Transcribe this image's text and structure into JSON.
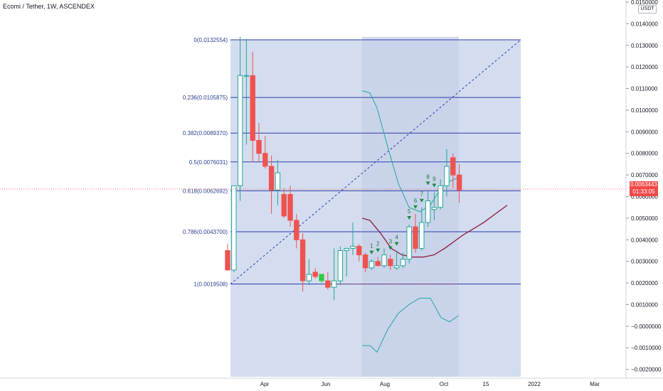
{
  "header": {
    "title": "Ecomi / Tether, 1W, ASCENDEX"
  },
  "price_axis": {
    "unit": "USDT"
  },
  "last_price": {
    "value": "0.0063443",
    "countdown": "01:33:05"
  },
  "colors": {
    "up": "#26a69a",
    "down": "#ef5350",
    "up_green": "#2ecc40",
    "fib": "#2f3cb0",
    "background_zone": "#d3ddef",
    "bollinger": "#26a69a",
    "moving_average": "#8d1b3d",
    "td": "#1e8a3e"
  },
  "chart_data": {
    "type": "candlestick",
    "title": "Ecomi / Tether, 1W, ASCENDEX",
    "y_ticks": [
      "0.0150000",
      "0.0140000",
      "0.0130000",
      "0.0120000",
      "0.0110000",
      "0.0100000",
      "0.0090000",
      "0.0080000",
      "0.0070000",
      "0.0060000",
      "0.0050000",
      "0.0040000",
      "0.0030000",
      "0.0020000",
      "0.0010000",
      "−0.0000000",
      "−0.0010000",
      "−0.0020000"
    ],
    "x_ticks": [
      "Apr",
      "Jun",
      "Aug",
      "Oct",
      "15",
      "2022",
      "Mar"
    ],
    "ylim": [
      -0.0025,
      0.0151
    ],
    "fib_levels": [
      {
        "label": "0(0.0132554)",
        "value": 0.0132554
      },
      {
        "label": "0.236(0.0105875)",
        "value": 0.0105875
      },
      {
        "label": "0.382(0.0089370)",
        "value": 0.008937
      },
      {
        "label": "0.5(0.0076031)",
        "value": 0.0076031
      },
      {
        "label": "0.618(0.0062692)",
        "value": 0.0062692
      },
      {
        "label": "0.786(0.0043700)",
        "value": 0.00437
      },
      {
        "label": "1(0.0019508)",
        "value": 0.0019508
      }
    ],
    "candles": [
      {
        "o": 0.0035,
        "h": 0.0038,
        "l": 0.0026,
        "c": 0.0026
      },
      {
        "o": 0.0026,
        "h": 0.0065,
        "l": 0.0025,
        "c": 0.0065
      },
      {
        "o": 0.0065,
        "h": 0.0134,
        "l": 0.0058,
        "c": 0.0116
      },
      {
        "o": 0.0116,
        "h": 0.0133,
        "l": 0.0084,
        "c": 0.0116
      },
      {
        "o": 0.0116,
        "h": 0.0127,
        "l": 0.0076,
        "c": 0.0086
      },
      {
        "o": 0.0086,
        "h": 0.0094,
        "l": 0.0076,
        "c": 0.008
      },
      {
        "o": 0.008,
        "h": 0.0088,
        "l": 0.0073,
        "c": 0.0074
      },
      {
        "o": 0.0074,
        "h": 0.0079,
        "l": 0.0052,
        "c": 0.0063
      },
      {
        "o": 0.0063,
        "h": 0.0077,
        "l": 0.0056,
        "c": 0.0071
      },
      {
        "o": 0.0061,
        "h": 0.0064,
        "l": 0.005,
        "c": 0.0051
      },
      {
        "o": 0.0061,
        "h": 0.0065,
        "l": 0.0046,
        "c": 0.0049
      },
      {
        "o": 0.0049,
        "h": 0.0052,
        "l": 0.0036,
        "c": 0.004
      },
      {
        "o": 0.004,
        "h": 0.0043,
        "l": 0.0016,
        "c": 0.0021
      },
      {
        "o": 0.0021,
        "h": 0.0031,
        "l": 0.0019,
        "c": 0.0024
      },
      {
        "o": 0.0025,
        "h": 0.0027,
        "l": 0.0022,
        "c": 0.0023
      },
      {
        "o": 0.0021,
        "h": 0.0024,
        "l": 0.002,
        "c": 0.0024
      },
      {
        "o": 0.0021,
        "h": 0.0025,
        "l": 0.0017,
        "c": 0.0018
      },
      {
        "o": 0.0018,
        "h": 0.0036,
        "l": 0.0012,
        "c": 0.0021
      },
      {
        "o": 0.0021,
        "h": 0.0037,
        "l": 0.0019,
        "c": 0.0035
      },
      {
        "o": 0.0035,
        "h": 0.0036,
        "l": 0.0023,
        "c": 0.0036
      },
      {
        "o": 0.0036,
        "h": 0.0048,
        "l": 0.0033,
        "c": 0.0037
      },
      {
        "o": 0.0037,
        "h": 0.0038,
        "l": 0.003,
        "c": 0.0033
      },
      {
        "o": 0.0033,
        "h": 0.0034,
        "l": 0.0025,
        "c": 0.0027
      },
      {
        "o": 0.0027,
        "h": 0.0031,
        "l": 0.0026,
        "c": 0.003
      },
      {
        "o": 0.003,
        "h": 0.0032,
        "l": 0.0028,
        "c": 0.0028
      },
      {
        "o": 0.0028,
        "h": 0.0036,
        "l": 0.0027,
        "c": 0.0033
      },
      {
        "o": 0.0031,
        "h": 0.0033,
        "l": 0.0026,
        "c": 0.0028
      },
      {
        "o": 0.0027,
        "h": 0.0035,
        "l": 0.0026,
        "c": 0.0028
      },
      {
        "o": 0.0028,
        "h": 0.0034,
        "l": 0.0027,
        "c": 0.0031
      },
      {
        "o": 0.0031,
        "h": 0.0047,
        "l": 0.0029,
        "c": 0.0046
      },
      {
        "o": 0.0046,
        "h": 0.0052,
        "l": 0.0034,
        "c": 0.0036
      },
      {
        "o": 0.0036,
        "h": 0.0055,
        "l": 0.0035,
        "c": 0.0048
      },
      {
        "o": 0.0048,
        "h": 0.0063,
        "l": 0.0046,
        "c": 0.0058
      },
      {
        "o": 0.0054,
        "h": 0.0062,
        "l": 0.0049,
        "c": 0.0055
      },
      {
        "o": 0.0055,
        "h": 0.0068,
        "l": 0.0054,
        "c": 0.0065
      },
      {
        "o": 0.0065,
        "h": 0.0082,
        "l": 0.006,
        "c": 0.0074
      },
      {
        "o": 0.0078,
        "h": 0.008,
        "l": 0.0064,
        "c": 0.007
      },
      {
        "o": 0.007,
        "h": 0.0075,
        "l": 0.0057,
        "c": 0.0063
      }
    ],
    "td_sequential": [
      {
        "label": "1",
        "candle": 23
      },
      {
        "label": "2",
        "candle": 24
      },
      {
        "label": "3",
        "candle": 26
      },
      {
        "label": "4",
        "candle": 27
      },
      {
        "label": "5",
        "candle": 29
      },
      {
        "label": "6",
        "candle": 30
      },
      {
        "label": "7",
        "candle": 31
      },
      {
        "label": "8",
        "candle": 32
      },
      {
        "label": "9",
        "candle": 33
      }
    ]
  }
}
